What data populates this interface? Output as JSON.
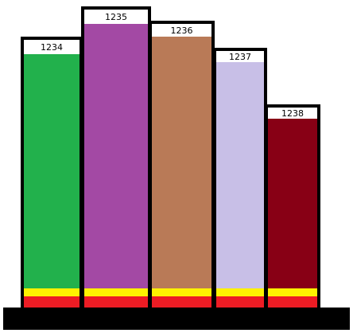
{
  "bars": [
    {
      "label": "1234",
      "color": "#22b14c"
    },
    {
      "label": "1235",
      "color": "#a349a4"
    },
    {
      "label": "1236",
      "color": "#b97a57"
    },
    {
      "label": "1237",
      "color": "#c8bfe7"
    },
    {
      "label": "1238",
      "color": "#880015"
    }
  ]
}
